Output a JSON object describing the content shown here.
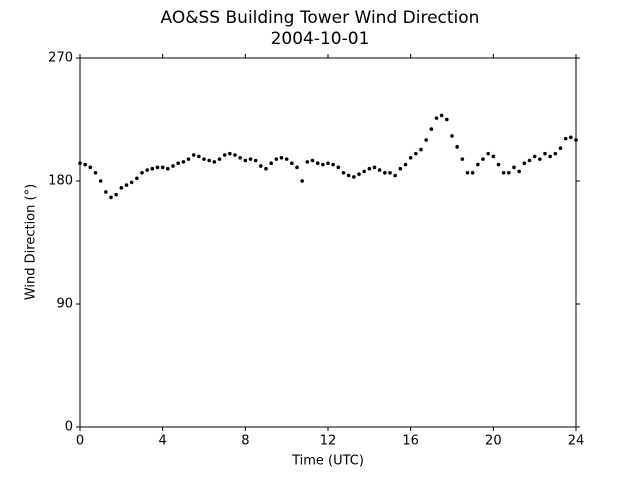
{
  "chart_data": {
    "type": "scatter",
    "title": "AO&SS Building Tower Wind Direction",
    "subtitle": "2004-10-01",
    "x_label": "Time (UTC)",
    "y_label": "Wind Direction (°)",
    "x": [
      0,
      0.25,
      0.5,
      0.75,
      1,
      1.25,
      1.5,
      1.75,
      2,
      2.25,
      2.5,
      2.75,
      3,
      3.25,
      3.5,
      3.75,
      4,
      4.25,
      4.5,
      4.75,
      5,
      5.25,
      5.5,
      5.75,
      6,
      6.25,
      6.5,
      6.75,
      7,
      7.25,
      7.5,
      7.75,
      8,
      8.25,
      8.5,
      8.75,
      9,
      9.25,
      9.5,
      9.75,
      10,
      10.25,
      10.5,
      10.75,
      11,
      11.25,
      11.5,
      11.75,
      12,
      12.25,
      12.5,
      12.75,
      13,
      13.25,
      13.5,
      13.75,
      14,
      14.25,
      14.5,
      14.75,
      15,
      15.25,
      15.5,
      15.75,
      16,
      16.25,
      16.5,
      16.75,
      17,
      17.25,
      17.5,
      17.75,
      18,
      18.25,
      18.5,
      18.75,
      19,
      19.25,
      19.5,
      19.75,
      20,
      20.25,
      20.5,
      20.75,
      21,
      21.25,
      21.5,
      21.75,
      22,
      22.25,
      22.5,
      22.75,
      23,
      23.25,
      23.5,
      23.75,
      24
    ],
    "values": [
      193,
      192,
      190,
      186,
      180,
      172,
      168,
      170,
      175,
      177,
      179,
      182,
      186,
      188,
      189,
      190,
      190,
      189,
      191,
      193,
      194,
      196,
      199,
      198,
      196,
      195,
      194,
      196,
      199,
      200,
      199,
      197,
      195,
      196,
      195,
      191,
      189,
      193,
      196,
      197,
      196,
      193,
      190,
      180,
      194,
      195,
      193,
      192,
      193,
      192,
      190,
      186,
      184,
      183,
      185,
      187,
      189,
      190,
      188,
      186,
      186,
      184,
      189,
      192,
      197,
      200,
      203,
      210,
      218,
      226,
      228,
      225,
      213,
      205,
      196,
      186,
      186,
      192,
      196,
      200,
      198,
      192,
      186,
      186,
      190,
      187,
      193,
      195,
      198,
      196,
      200,
      198,
      200,
      204,
      211,
      212,
      210
    ],
    "color": "#000000",
    "xlim": [
      0,
      24
    ],
    "xticks": [
      0,
      4,
      8,
      12,
      16,
      20,
      24
    ],
    "ylim": [
      0,
      270
    ],
    "yticks": [
      0,
      90,
      180,
      270
    ]
  }
}
